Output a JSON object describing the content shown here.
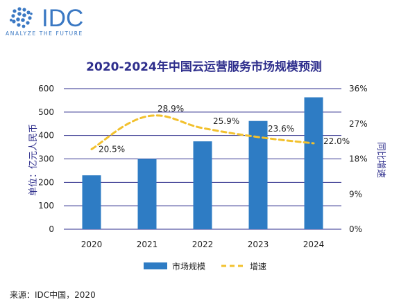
{
  "logo": {
    "name": "IDC",
    "tagline": "ANALYZE THE FUTURE"
  },
  "colors": {
    "bar": "#2E7CC4",
    "line": "#F2C12E",
    "title": "#2E2E8C",
    "grid": "#2E2E8C",
    "text": "#1F1F1F",
    "logo": "#3A78C3"
  },
  "source": "来源：IDC中国，2020",
  "chart_data": {
    "type": "bar",
    "title": "2020-2024年中国云运营服务市场规模预测",
    "categories": [
      "2020",
      "2021",
      "2022",
      "2023",
      "2024"
    ],
    "ylabel": "单位：亿元人民币",
    "y2label": "同比增速",
    "ylim": [
      0,
      600
    ],
    "y2lim": [
      0,
      36
    ],
    "yticks": [
      "0",
      "100",
      "200",
      "300",
      "400",
      "500",
      "600"
    ],
    "y2ticks": [
      "0%",
      "9%",
      "18%",
      "27%",
      "36%"
    ],
    "grid": true,
    "legend_position": "bottom",
    "series": [
      {
        "name": "市场规模",
        "type": "bar",
        "axis": "left",
        "values": [
          230,
          300,
          375,
          462,
          563
        ]
      },
      {
        "name": "增速",
        "type": "line",
        "style": "dashed-smooth",
        "axis": "right",
        "values": [
          20.5,
          28.9,
          25.9,
          23.6,
          22.0
        ],
        "labels": [
          "20.5%",
          "28.9%",
          "25.9%",
          "23.6%",
          "22.0%"
        ]
      }
    ]
  }
}
